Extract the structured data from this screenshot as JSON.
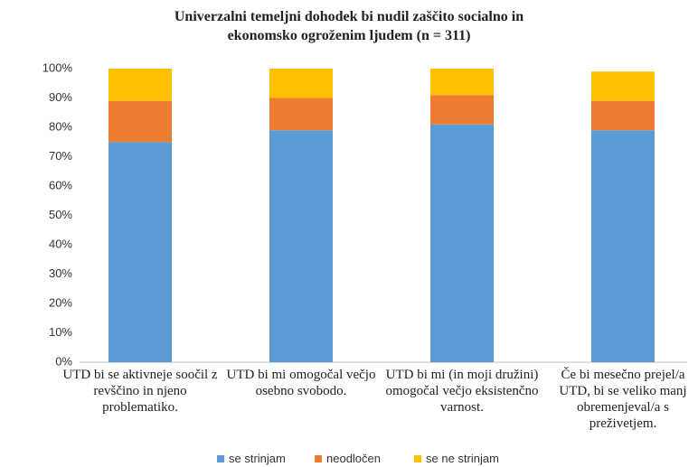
{
  "chart_data": {
    "type": "stacked_bar",
    "title": "Univerzalni temeljni dohodek bi nudil zaščito socialno in ekonomsko ogroženim ljudem (n = 311)",
    "categories": [
      "UTD bi se aktivneje soočil z revščino in njeno problematiko.",
      "UTD bi mi omogočal večjo osebno svobodo.",
      "UTD bi mi (in moji družini) omogočal večjo eksistenčno varnost.",
      "Če bi mesečno prejel/a UTD, bi se veliko manj obremenjeval/a s preživetjem."
    ],
    "series": [
      {
        "name": "se strinjam",
        "color": "#5b9bd5",
        "values": [
          75,
          79,
          81,
          79
        ]
      },
      {
        "name": "neodločen",
        "color": "#ed7d31",
        "values": [
          14,
          11,
          10,
          10
        ]
      },
      {
        "name": "se ne strinjam",
        "color": "#ffc000",
        "values": [
          11,
          10,
          9,
          10
        ]
      }
    ],
    "ylim": [
      0,
      100
    ],
    "yticks": [
      {
        "value": 0,
        "label": "0%"
      },
      {
        "value": 10,
        "label": "10%"
      },
      {
        "value": 20,
        "label": "20%"
      },
      {
        "value": 30,
        "label": "30%"
      },
      {
        "value": 40,
        "label": "40%"
      },
      {
        "value": 50,
        "label": "50%"
      },
      {
        "value": 60,
        "label": "60%"
      },
      {
        "value": 70,
        "label": "70%"
      },
      {
        "value": 80,
        "label": "80%"
      },
      {
        "value": 90,
        "label": "90%"
      },
      {
        "value": 100,
        "label": "100%"
      }
    ],
    "legend": "bottom"
  }
}
